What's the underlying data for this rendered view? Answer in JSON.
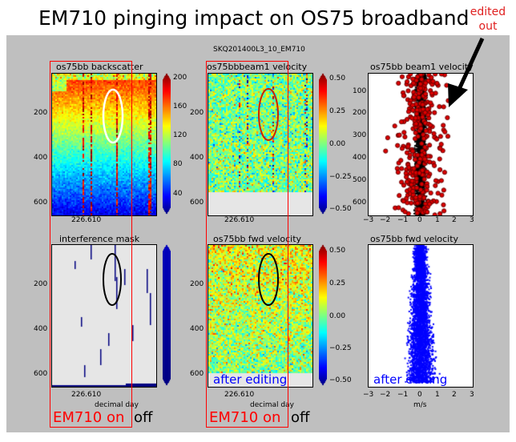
{
  "title": "EM710 pinging impact on OS75 broadband",
  "edited_note": "edited out",
  "figure_title": "SKQ201400L3_10_EM710",
  "panel_titles": {
    "backscatter": "os75bb backscatter",
    "beam1_velocity": "os75bbbeam1 velocity",
    "beam1_profile": "os75bb beam1 velocity",
    "interference": "interference mask",
    "fwd_velocity": "os75bb fwd velocity",
    "fwd_profile": "os75bb fwd velocity"
  },
  "colors": {
    "red_annotation": "#ff0000",
    "blue_annotation": "#0000ff",
    "profile_red": "#dd0000",
    "profile_blue": "#0000ff"
  },
  "chart_data": [
    {
      "type": "heatmap",
      "title": "os75bb backscatter",
      "x_tick": "226.610",
      "y_ticks": [
        "200",
        "400",
        "600"
      ],
      "colorbar_ticks": [
        "40",
        "80",
        "120",
        "160",
        "200"
      ],
      "colorbar_range": [
        30,
        200
      ],
      "annotation": "white ellipse around vertical streaks"
    },
    {
      "type": "heatmap",
      "title": "os75bbbeam1 velocity",
      "x_tick": "226.610",
      "y_ticks": [
        "200",
        "400",
        "600"
      ],
      "colorbar_ticks": [
        "0.50",
        "0.25",
        "0.00",
        "−0.25",
        "−0.50"
      ],
      "colorbar_range": [
        -0.5,
        0.5
      ],
      "annotation": "red ellipse around vertical streaks"
    },
    {
      "type": "scatter",
      "title": "os75bb beam1 velocity",
      "x_ticks": [
        "−3",
        "−2",
        "−1",
        "0",
        "1",
        "2",
        "3"
      ],
      "y_ticks": [
        "100",
        "200",
        "300",
        "400",
        "500",
        "600"
      ],
      "xlim": [
        -3,
        3
      ],
      "ylim": [
        650,
        50
      ],
      "series": [
        {
          "color": "red",
          "description": "flagged points"
        },
        {
          "color": "black",
          "description": "kept points"
        }
      ]
    },
    {
      "type": "heatmap",
      "title": "interference mask",
      "x_tick": "226.610",
      "xlabel": "decimal day",
      "y_ticks": [
        "200",
        "400",
        "600"
      ]
    },
    {
      "type": "heatmap",
      "title": "os75bb fwd velocity",
      "x_tick": "226.610",
      "xlabel": "decimal day",
      "y_ticks": [
        "200",
        "400",
        "600"
      ],
      "colorbar_ticks": [
        "0.50",
        "0.25",
        "0.00",
        "−0.25",
        "−0.50"
      ],
      "colorbar_range": [
        -0.5,
        0.5
      ]
    },
    {
      "type": "scatter",
      "title": "os75bb fwd velocity",
      "xlabel": "m/s",
      "x_ticks": [
        "−3",
        "−2",
        "−1",
        "0",
        "1",
        "2",
        "3"
      ],
      "xlim": [
        -3,
        3
      ],
      "ylim": [
        650,
        50
      ]
    }
  ],
  "annotations": {
    "em710_on": "EM710 on",
    "off": "off",
    "after_editing": "after editing"
  }
}
